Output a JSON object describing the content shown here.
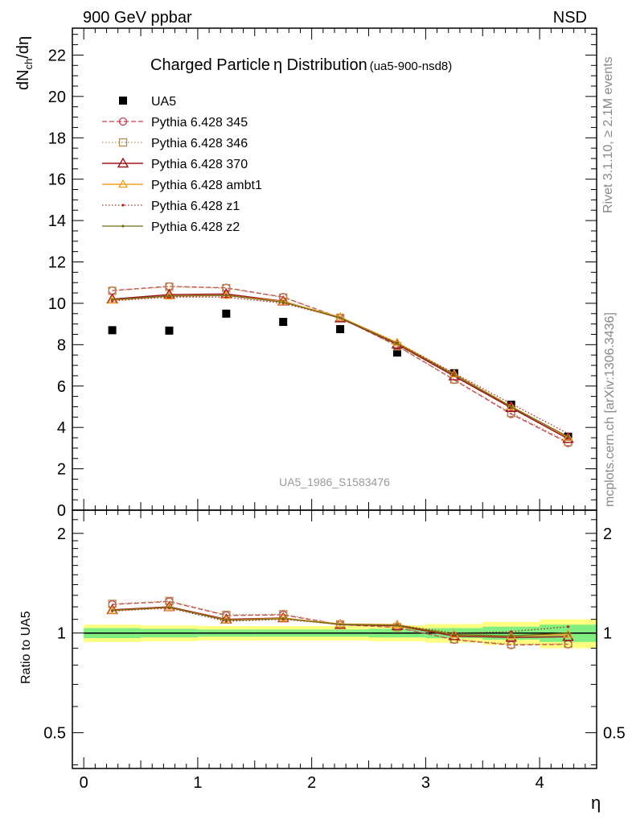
{
  "header": {
    "left": "900 GeV ppbar",
    "right": "NSD"
  },
  "side_labels": {
    "rivet": "Rivet 3.1.10, ≥ 2.1M events",
    "mcplots": "mcplots.cern.ch [arXiv:1306.3436]"
  },
  "colors": {
    "data": "#000000",
    "p345": "#c83c50",
    "p346": "#b48c50",
    "p370": "#a0141e",
    "ambt1": "#f0a01e",
    "z1": "#c81e1e",
    "z2": "#6e6e14",
    "band_inner": "#80ee80",
    "band_outer": "#ffff80"
  },
  "chart_data": [
    {
      "type": "scatter",
      "panel": "main",
      "title": "Charged Particle",
      "title_symbol": "η",
      "title_rest": " Distribution",
      "title_tag": "(ua5-900-nsd8)",
      "ylabel": "dN",
      "ylabel_sub": "ch",
      "ylabel_tail": "/dη",
      "watermark": "UA5_1986_S1583476",
      "xlim": [
        -0.1,
        4.5
      ],
      "ylim": [
        0,
        23.3
      ],
      "yticks": [
        0,
        2,
        4,
        6,
        8,
        10,
        12,
        14,
        16,
        18,
        20,
        22
      ],
      "x": [
        0.25,
        0.75,
        1.25,
        1.75,
        2.25,
        2.75,
        3.25,
        3.75,
        4.25
      ],
      "series": [
        {
          "name": "UA5",
          "key": "data",
          "values": [
            8.7,
            8.68,
            9.5,
            9.1,
            8.75,
            7.62,
            6.62,
            5.1,
            3.55
          ]
        },
        {
          "name": "Pythia 6.428 345",
          "key": "p345",
          "values": [
            10.62,
            10.82,
            10.75,
            10.3,
            9.3,
            7.95,
            6.3,
            4.65,
            3.25
          ]
        },
        {
          "name": "Pythia 6.428 346",
          "key": "p346",
          "values": [
            10.6,
            10.8,
            10.73,
            10.28,
            9.3,
            7.92,
            6.32,
            4.7,
            3.3
          ]
        },
        {
          "name": "Pythia 6.428 370",
          "key": "p370",
          "values": [
            10.2,
            10.42,
            10.45,
            10.1,
            9.28,
            8.02,
            6.48,
            4.95,
            3.45
          ]
        },
        {
          "name": "Pythia 6.428 ambt1",
          "key": "ambt1",
          "values": [
            10.15,
            10.35,
            10.38,
            10.08,
            9.33,
            8.1,
            6.58,
            5.02,
            3.52
          ]
        },
        {
          "name": "Pythia 6.428 z1",
          "key": "z1",
          "values": [
            10.12,
            10.3,
            10.3,
            10.0,
            9.3,
            8.08,
            6.62,
            5.15,
            3.7
          ]
        },
        {
          "name": "Pythia 6.428 z2",
          "key": "z2",
          "values": [
            10.18,
            10.35,
            10.38,
            10.05,
            9.3,
            8.05,
            6.55,
            5.0,
            3.55
          ]
        }
      ]
    },
    {
      "type": "line",
      "panel": "ratio",
      "ylabel": "Ratio to UA5",
      "xlabel": "η",
      "xlim": [
        -0.1,
        4.5
      ],
      "ylim": [
        0.39,
        2.35
      ],
      "scale": "log",
      "yticks": [
        0.5,
        1,
        2
      ],
      "ytick_labels": [
        "0.5",
        "1",
        "2"
      ],
      "xticks": [
        0,
        1,
        2,
        3,
        4
      ],
      "xtick_labels": [
        "0",
        "1",
        "2",
        "3",
        "4"
      ],
      "x": [
        0.25,
        0.75,
        1.25,
        1.75,
        2.25,
        2.75,
        3.25,
        3.75,
        4.25
      ],
      "band_edges": [
        0.0,
        0.5,
        1.0,
        1.5,
        2.0,
        2.5,
        3.0,
        3.5,
        4.0,
        4.5
      ],
      "band_inner": [
        0.035,
        0.03,
        0.025,
        0.025,
        0.025,
        0.03,
        0.035,
        0.045,
        0.06
      ],
      "band_outer": [
        0.06,
        0.055,
        0.05,
        0.05,
        0.05,
        0.055,
        0.065,
        0.08,
        0.1
      ],
      "series": [
        {
          "name": "Pythia 6.428 345",
          "key": "p345",
          "values": [
            1.22,
            1.245,
            1.13,
            1.135,
            1.06,
            1.04,
            0.955,
            0.92,
            0.925
          ]
        },
        {
          "name": "Pythia 6.428 346",
          "key": "p346",
          "values": [
            1.225,
            1.25,
            1.135,
            1.14,
            1.062,
            1.042,
            0.958,
            0.925,
            0.928
          ]
        },
        {
          "name": "Pythia 6.428 370",
          "key": "p370",
          "values": [
            1.175,
            1.2,
            1.1,
            1.11,
            1.06,
            1.052,
            0.98,
            0.97,
            0.975
          ]
        },
        {
          "name": "Pythia 6.428 ambt1",
          "key": "ambt1",
          "values": [
            1.17,
            1.195,
            1.095,
            1.108,
            1.065,
            1.06,
            0.99,
            0.98,
            0.99
          ]
        },
        {
          "name": "Pythia 6.428 z1",
          "key": "z1",
          "values": [
            1.165,
            1.19,
            1.085,
            1.1,
            1.062,
            1.058,
            1.0,
            1.01,
            1.045
          ]
        },
        {
          "name": "Pythia 6.428 z2",
          "key": "z2",
          "values": [
            1.17,
            1.195,
            1.093,
            1.105,
            1.062,
            1.055,
            0.99,
            0.98,
            1.0
          ]
        }
      ]
    }
  ]
}
